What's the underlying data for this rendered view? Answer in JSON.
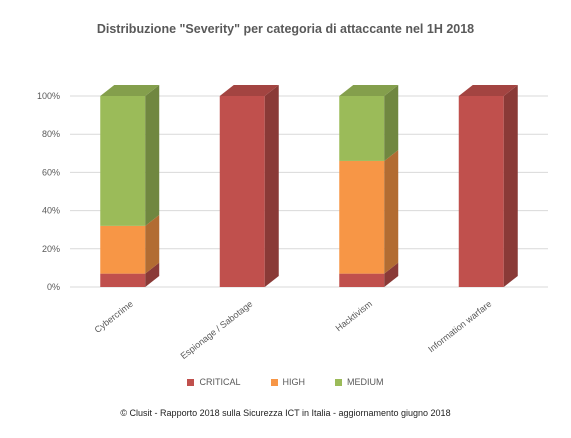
{
  "chart_data": {
    "type": "bar",
    "stacked": true,
    "three_d": true,
    "title": "Distribuzione \"Severity\" per categoria di attaccante nel 1H 2018",
    "categories": [
      "Cybercrime",
      "Espionage / Sabotage",
      "Hacktivism",
      "Information warfare"
    ],
    "series": [
      {
        "name": "CRITICAL",
        "color": "#c0504d",
        "values": [
          7,
          100,
          7,
          100
        ]
      },
      {
        "name": "HIGH",
        "color": "#f79646",
        "values": [
          25,
          0,
          59,
          0
        ]
      },
      {
        "name": "MEDIUM",
        "color": "#9bbb59",
        "values": [
          68,
          0,
          34,
          0
        ]
      }
    ],
    "y_ticks": [
      "0%",
      "20%",
      "40%",
      "60%",
      "80%",
      "100%"
    ],
    "ylim": [
      0,
      100
    ],
    "grid": true,
    "legend_position": "bottom"
  },
  "footer": "© Clusit - Rapporto 2018 sulla Sicurezza ICT in Italia - aggiornamento giugno 2018"
}
